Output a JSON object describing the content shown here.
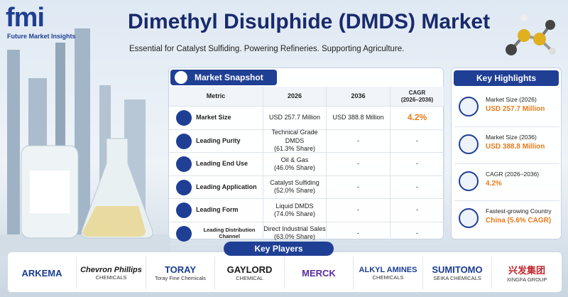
{
  "header": {
    "logo": "fmi",
    "logo_tagline": "Future Market Insights",
    "title": "Dimethyl Disulphide (DMDS) Market",
    "subtitle": "Essential for Catalyst Sulfiding. Powering Refineries. Supporting Agriculture."
  },
  "snapshot": {
    "title": "Market Snapshot",
    "columns": [
      "Metric",
      "2026",
      "2036",
      [
        "CAGR",
        "(2026–2036)"
      ]
    ],
    "rows": [
      [
        "Market Size",
        "USD 257.7 Million",
        "USD 388.8 Million",
        "4.2%"
      ],
      [
        "Leading Purity",
        [
          "Technical Grade DMDS",
          "(61.3% Share)"
        ],
        "-",
        "-"
      ],
      [
        "Leading End Use",
        [
          "Oil & Gas",
          "(46.0% Share)"
        ],
        "-",
        "-"
      ],
      [
        "Leading Application",
        [
          "Catalyst Sulfiding",
          "(52.0% Share)"
        ],
        "-",
        "-"
      ],
      [
        "Leading Form",
        [
          "Liquid DMDS",
          "(74.0% Share)"
        ],
        "-",
        "-"
      ],
      [
        "Leading Distribution Channel",
        [
          "Direct Industrial Sales",
          "(63.0% Share)"
        ],
        "-",
        "-"
      ]
    ]
  },
  "highlights": {
    "title": "Key Highlights",
    "items": [
      {
        "label": "Market Size (2026)",
        "value": "USD 257.7 Million"
      },
      {
        "label": "Market Size (2036)",
        "value": "USD 388.8 Million"
      },
      {
        "label": "CAGR (2026–2036)",
        "value": "4.2%"
      },
      {
        "label": "Fastest-growing Country",
        "value": "China (5.6% CAGR)"
      }
    ]
  },
  "key_players": {
    "title": "Key Players",
    "players": [
      {
        "name": "ARKEMA"
      },
      {
        "name": "Chevron Phillips",
        "sub": "CHEMICALS"
      },
      {
        "name": "TORAY",
        "sub": "Toray Fine Chemicals"
      },
      {
        "name": "GAYLORD",
        "sub": "CHEMICAL"
      },
      {
        "name": "MERCK"
      },
      {
        "name": "ALKYL AMINES",
        "sub": "CHEMICALS"
      },
      {
        "name": "SUMITOMO",
        "sub": "SEIKA CHEMICALS"
      },
      {
        "name": "兴发集团",
        "sub": "XINGFA GROUP"
      }
    ]
  }
}
